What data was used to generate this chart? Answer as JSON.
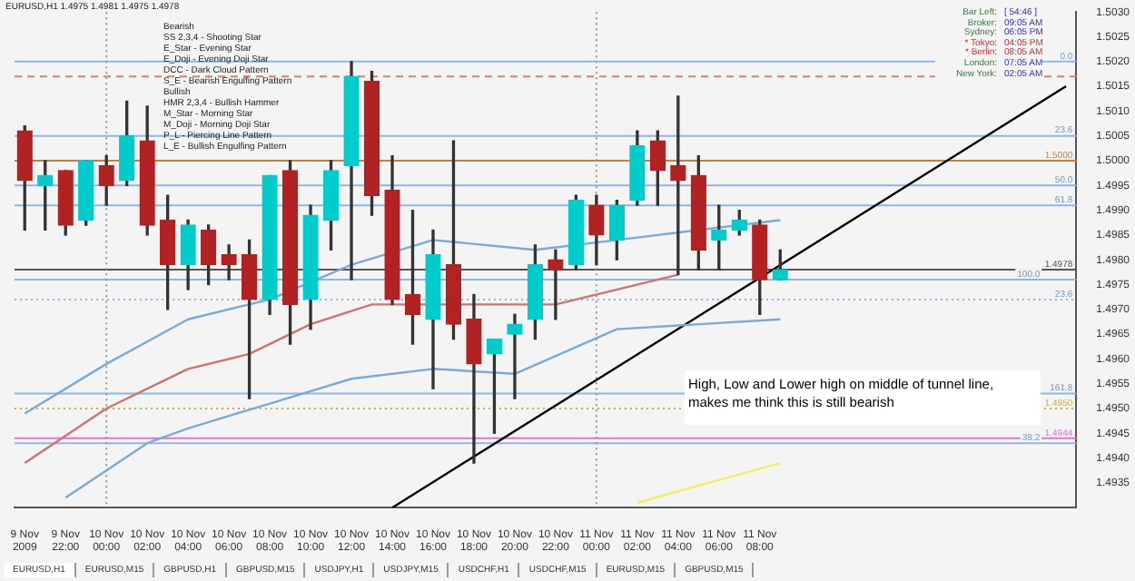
{
  "chart_data": {
    "type": "candlestick",
    "title": "EURUSD,H1 1.4975 1.4981 1.4975 1.4978",
    "categories": [
      "9 Nov 2009",
      null,
      "9 Nov 22:00",
      null,
      "10 Nov 00:00",
      null,
      "10 Nov 02:00",
      null,
      "10 Nov 04:00",
      null,
      "10 Nov 06:00",
      null,
      "10 Nov 08:00",
      null,
      "10 Nov 10:00",
      null,
      "10 Nov 12:00",
      null,
      "10 Nov 14:00",
      null,
      "10 Nov 16:00",
      null,
      "10 Nov 18:00",
      null,
      "10 Nov 20:00",
      null,
      "10 Nov 22:00",
      null,
      "11 Nov 00:00",
      null,
      "11 Nov 02:00",
      null,
      "11 Nov 04:00",
      null,
      "11 Nov 06:00",
      null,
      "11 Nov 08:00",
      null,
      null,
      null,
      null,
      null,
      null,
      null,
      null,
      null,
      null,
      null,
      null,
      null,
      null,
      null
    ],
    "ohlc": [
      [
        1.5006,
        1.5007,
        1.4986,
        1.4996
      ],
      [
        1.4995,
        1.5,
        1.4986,
        1.4997
      ],
      [
        1.4998,
        1.4998,
        1.4985,
        1.4987
      ],
      [
        1.4988,
        1.5,
        1.4987,
        1.5
      ],
      [
        1.4999,
        1.5001,
        1.4991,
        1.4995
      ],
      [
        1.4996,
        1.5012,
        1.4995,
        1.5005
      ],
      [
        1.5004,
        1.5011,
        1.4985,
        1.4987
      ],
      [
        1.4988,
        1.4993,
        1.497,
        1.4979
      ],
      [
        1.4979,
        1.4988,
        1.4974,
        1.4987
      ],
      [
        1.4986,
        1.4987,
        1.4975,
        1.4979
      ],
      [
        1.4981,
        1.4983,
        1.4976,
        1.4979
      ],
      [
        1.4981,
        1.4984,
        1.4952,
        1.4972
      ],
      [
        1.4972,
        1.4997,
        1.4969,
        1.4997
      ],
      [
        1.4998,
        1.5,
        1.4963,
        1.4971
      ],
      [
        1.4972,
        1.4991,
        1.4966,
        1.4989
      ],
      [
        1.4988,
        1.5,
        1.4982,
        1.4998
      ],
      [
        1.4999,
        1.502,
        1.4976,
        1.5017
      ],
      [
        1.5016,
        1.5018,
        1.4989,
        1.4993
      ],
      [
        1.4994,
        1.5001,
        1.4971,
        1.4972
      ],
      [
        1.4973,
        1.499,
        1.4963,
        1.4969
      ],
      [
        1.4968,
        1.4986,
        1.4954,
        1.4981
      ],
      [
        1.4979,
        1.5004,
        1.4964,
        1.4967
      ],
      [
        1.4968,
        1.4973,
        1.4939,
        1.4959
      ],
      [
        1.4961,
        1.4964,
        1.4945,
        1.4964
      ],
      [
        1.4965,
        1.4969,
        1.4952,
        1.4967
      ],
      [
        1.4968,
        1.4983,
        1.4964,
        1.4979
      ],
      [
        1.498,
        1.4982,
        1.4968,
        1.4978
      ],
      [
        1.4979,
        1.4993,
        1.4978,
        1.4992
      ],
      [
        1.4991,
        1.4993,
        1.4979,
        1.4985
      ],
      [
        1.4984,
        1.4992,
        1.498,
        1.4991
      ],
      [
        1.4992,
        1.5006,
        1.4991,
        1.5003
      ],
      [
        1.5004,
        1.5006,
        1.4991,
        1.4998
      ],
      [
        1.4999,
        1.5013,
        1.4977,
        1.4996
      ],
      [
        1.4997,
        1.5001,
        1.4978,
        1.4982
      ],
      [
        1.4984,
        1.4991,
        1.4978,
        1.4986
      ],
      [
        1.4986,
        1.499,
        1.4985,
        1.4988
      ],
      [
        1.4987,
        1.4988,
        1.4969,
        1.4976
      ],
      [
        1.4976,
        1.4982,
        1.4976,
        1.4978
      ],
      null,
      null,
      null,
      null,
      null,
      null,
      null,
      null,
      null,
      null,
      null,
      null,
      null,
      null
    ],
    "colors": [
      "#b22222",
      "#00cccc",
      "#b22222",
      "#00cccc",
      "#b22222",
      "#00cccc",
      "#b22222",
      "#b22222",
      "#00cccc",
      "#b22222",
      "#b22222",
      "#b22222",
      "#00cccc",
      "#b22222",
      "#00cccc",
      "#00cccc",
      "#00cccc",
      "#b22222",
      "#b22222",
      "#b22222",
      "#00cccc",
      "#b22222",
      "#b22222",
      "#00cccc",
      "#00cccc",
      "#00cccc",
      "#b22222",
      "#00cccc",
      "#b22222",
      "#00cccc",
      "#00cccc",
      "#b22222",
      "#b22222",
      "#b22222",
      "#00cccc",
      "#00cccc",
      "#b22222",
      "#00cccc",
      null,
      null,
      null,
      null,
      null,
      null,
      null,
      null,
      null,
      null,
      null,
      null,
      null,
      null
    ],
    "series": [
      {
        "type": "line",
        "color": "#d47070",
        "values": [
          1.4939,
          null,
          null,
          null,
          1.495,
          null,
          null,
          null,
          1.4958,
          null,
          null,
          1.4961,
          null,
          null,
          1.4967,
          null,
          null,
          1.4971,
          null,
          null,
          null,
          null,
          null,
          1.4971,
          null,
          null,
          1.4971,
          null,
          null,
          null,
          null,
          null,
          1.4977,
          null,
          null,
          null,
          null,
          null,
          null,
          null,
          null,
          null,
          null,
          null,
          null,
          null,
          null,
          null,
          null,
          null,
          null,
          null
        ]
      },
      {
        "type": "line",
        "color": "#7aaad8",
        "values": [
          1.4949,
          null,
          null,
          null,
          1.4959,
          null,
          null,
          null,
          1.4968,
          null,
          null,
          null,
          1.4972,
          null,
          null,
          null,
          1.4979,
          null,
          null,
          null,
          1.4984,
          null,
          null,
          null,
          null,
          1.4982,
          null,
          null,
          null,
          1.4984,
          null,
          null,
          null,
          null,
          null,
          null,
          null,
          1.4988,
          null,
          null,
          null,
          null,
          null,
          null,
          null,
          null,
          null,
          null,
          null,
          null,
          null,
          null
        ]
      },
      {
        "type": "line",
        "color": "#7aaad8",
        "values": [
          null,
          null,
          1.4932,
          null,
          null,
          null,
          1.4943,
          null,
          1.4946,
          null,
          null,
          null,
          1.4951,
          null,
          null,
          null,
          1.4956,
          null,
          null,
          null,
          1.4958,
          null,
          null,
          null,
          1.4957,
          null,
          null,
          null,
          null,
          1.4966,
          null,
          null,
          null,
          null,
          null,
          null,
          null,
          1.4968,
          null,
          null,
          null,
          null,
          null,
          null,
          null,
          null,
          null,
          null,
          null,
          null,
          null,
          null
        ]
      },
      {
        "type": "line",
        "color": "#000000",
        "values": [
          null,
          null,
          null,
          null,
          null,
          null,
          null,
          null,
          null,
          null,
          null,
          null,
          null,
          null,
          null,
          null,
          null,
          null,
          1.493,
          null,
          null,
          null,
          null,
          null,
          null,
          null,
          null,
          null,
          null,
          null,
          null,
          null,
          null,
          null,
          null,
          null,
          null,
          null,
          null,
          null,
          null,
          null,
          null,
          null,
          null,
          null,
          null,
          null,
          null,
          null,
          null,
          1.5015
        ]
      },
      {
        "type": "line",
        "color": "#f0f060",
        "values": [
          null,
          null,
          null,
          null,
          null,
          null,
          null,
          null,
          null,
          null,
          null,
          null,
          null,
          null,
          null,
          null,
          null,
          null,
          null,
          null,
          null,
          null,
          null,
          null,
          null,
          null,
          null,
          null,
          null,
          null,
          1.4931,
          null,
          null,
          null,
          null,
          null,
          null,
          1.4939,
          null,
          null,
          null,
          null,
          null,
          null,
          null,
          null,
          null,
          null,
          null,
          null,
          null,
          null
        ]
      }
    ],
    "ylim": [
      1.493,
      1.503
    ],
    "yticks": [
      {
        "value": 1.4935,
        "label": "1.4935"
      },
      {
        "value": 1.494,
        "label": "1.4940"
      },
      {
        "value": 1.4945,
        "label": "1.4945"
      },
      {
        "value": 1.495,
        "label": "1.4950"
      },
      {
        "value": 1.4955,
        "label": "1.4955"
      },
      {
        "value": 1.496,
        "label": "1.4960"
      },
      {
        "value": 1.4965,
        "label": "1.4965"
      },
      {
        "value": 1.497,
        "label": "1.4970"
      },
      {
        "value": 1.4975,
        "label": "1.4975"
      },
      {
        "value": 1.498,
        "label": "1.4980"
      },
      {
        "value": 1.4985,
        "label": "1.4985"
      },
      {
        "value": 1.499,
        "label": "1.4990"
      },
      {
        "value": 1.4995,
        "label": "1.4995"
      },
      {
        "value": 1.5,
        "label": "1.5000"
      },
      {
        "value": 1.5005,
        "label": "1.5005"
      },
      {
        "value": 1.501,
        "label": "1.5010"
      },
      {
        "value": 1.5015,
        "label": "1.5015"
      },
      {
        "value": 1.502,
        "label": "1.5020"
      },
      {
        "value": 1.5025,
        "label": "1.5025"
      },
      {
        "value": 1.503,
        "label": "1.5030"
      }
    ],
    "ref_lines": [
      {
        "axis": "y",
        "value": 1.5,
        "label": "1.5000",
        "color": "#c87f3c"
      },
      {
        "axis": "y",
        "value": 1.4978,
        "label": "1.4978",
        "color": "#555555"
      },
      {
        "axis": "y",
        "value": 1.4944,
        "label": "1.4944",
        "color": "#e070e0"
      },
      {
        "axis": "y",
        "value": 1.495,
        "label": "1.4950",
        "color": "#c8b040",
        "line_style": "dotted"
      },
      {
        "axis": "y",
        "value": 1.5017,
        "color": "#e08060",
        "line_style": "dashed"
      },
      {
        "axis": "y",
        "value": 1.502,
        "color": "#8fb8e0"
      },
      {
        "axis": "y",
        "value": 1.5005,
        "color": "#8fb8e0"
      },
      {
        "axis": "y",
        "value": 1.4995,
        "color": "#8fb8e0"
      },
      {
        "axis": "y",
        "value": 1.4991,
        "color": "#8fb8e0"
      },
      {
        "axis": "y",
        "value": 1.4976,
        "color": "#8fb8e0"
      },
      {
        "axis": "y",
        "value": 1.4972,
        "color": "#8fb8e0",
        "line_style": "dotted"
      },
      {
        "axis": "y",
        "value": 1.4953,
        "color": "#8fb8e0"
      },
      {
        "axis": "y",
        "value": 1.4943,
        "color": "#8fb8e0"
      },
      {
        "axis": "x",
        "value": "10 Nov 00:00",
        "color": "#999999",
        "line_style": "dotted"
      },
      {
        "axis": "x",
        "value": "11 Nov 00:00",
        "color": "#999999",
        "line_style": "dotted"
      }
    ],
    "annotations": [
      "High, Low and Lower high on middle of tunnel line, makes me think this is still bearish",
      "Bearish",
      "SS 2,3,4 - Shooting Star",
      "E_Star - Evening Star",
      "E_Doji - Evening Doji Star",
      "DCC - Dark Cloud Pattern",
      "S_E - Bearish Engulfing Pattern",
      "Bullish",
      "HMR 2,3,4 - Bullish Hammer",
      "M_Star - Morning Star",
      "M_Doji - Morning Doji Star",
      "P_L - Piercing Line Pattern",
      "L_E - Bullish Engulfing Pattern",
      "Bar Left:",
      "[ 54:46 ]",
      "Broker:",
      "09:05 AM",
      "Sydney:",
      "06:05 PM",
      "* Tokyo:",
      "04:05 PM",
      "* Berlin:",
      "08:05 AM",
      "London:",
      "07:05 AM",
      "New York:",
      "02:05 AM",
      "EURUSD,H1",
      "EURUSD,M15",
      "GBPUSD,H1",
      "GBPUSD,M15",
      "USDJPY,H1",
      "USDJPY,M15",
      "USDCHF,H1",
      "USDCHF,M15",
      "EURUSD,M15",
      "GBPUSD,M15",
      {
        "text": "0.0",
        "y": 1.502
      },
      {
        "text": "23.6",
        "y": 1.5005
      },
      {
        "text": "50.0",
        "y": 1.4995
      },
      {
        "text": "61.8",
        "y": 1.4991
      },
      {
        "text": "100.0",
        "y": 1.4976
      },
      {
        "text": "23.6",
        "y": 1.4972
      },
      {
        "text": "161.8",
        "y": 1.4953
      },
      {
        "text": "38.2",
        "y": 1.4943
      }
    ],
    "grid": false,
    "legend": false
  }
}
